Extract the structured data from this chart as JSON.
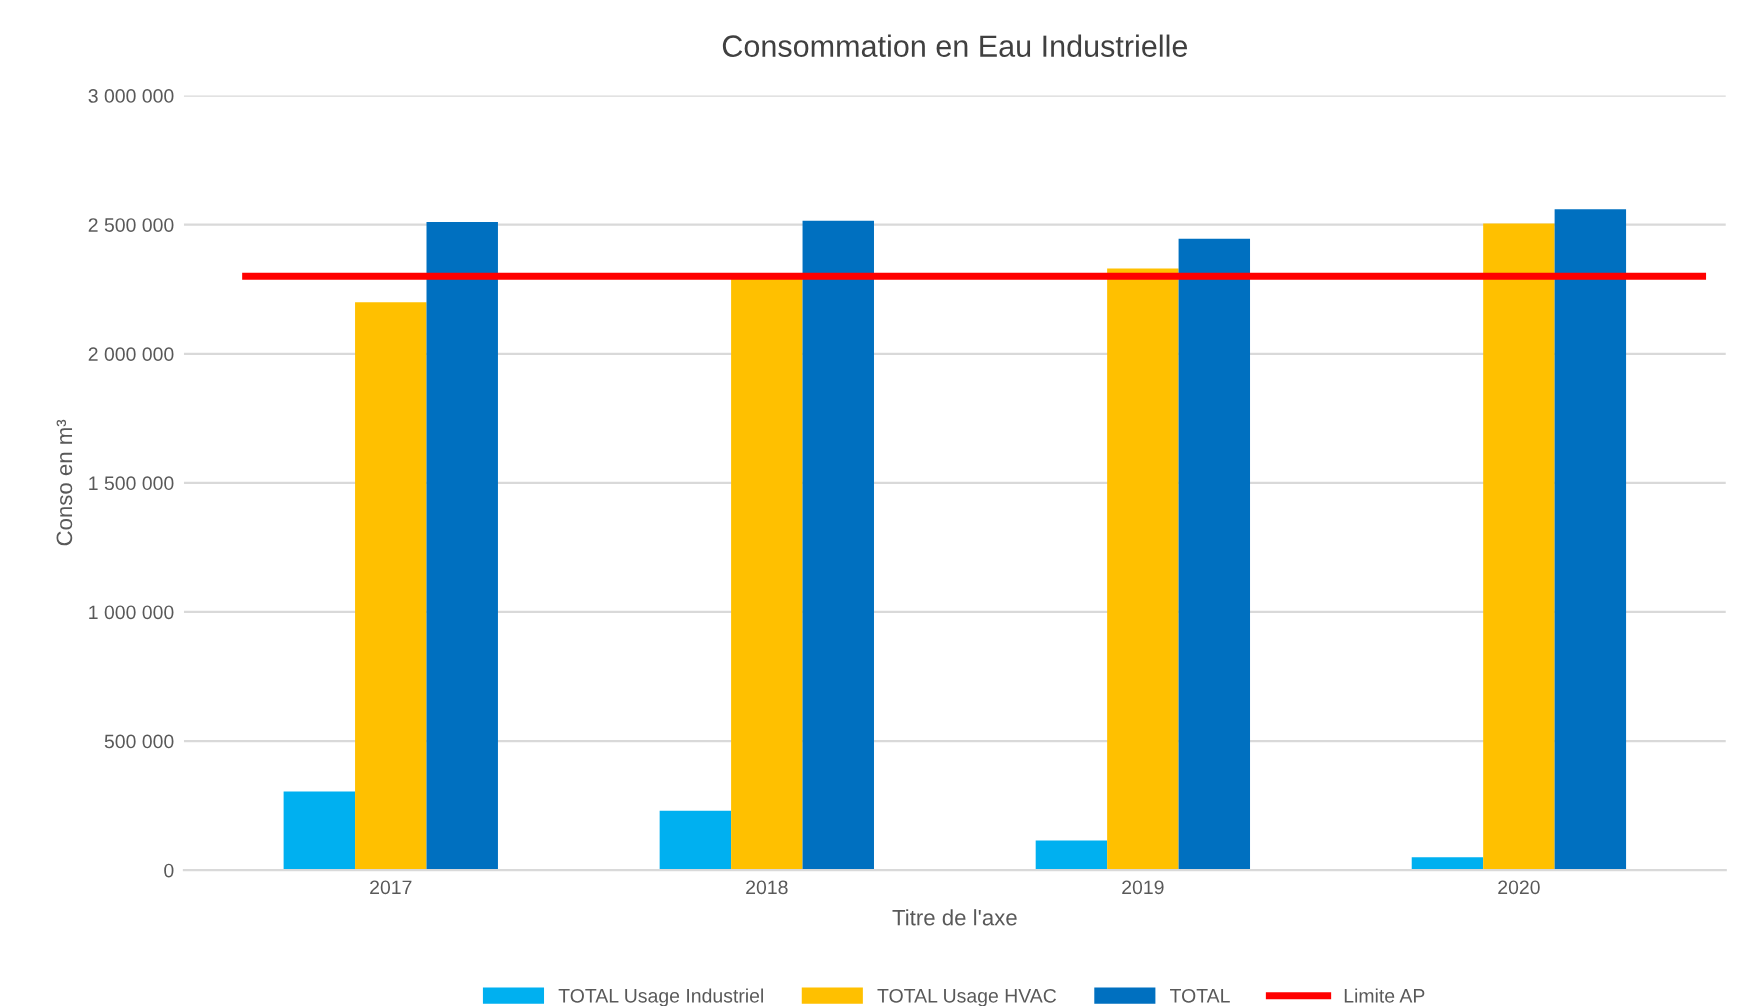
{
  "chart_data": {
    "type": "bar",
    "title": "Consommation en Eau Industrielle",
    "xlabel": "Titre de l'axe",
    "ylabel": "Conso en m³",
    "categories": [
      "2017",
      "2018",
      "2019",
      "2020"
    ],
    "series": [
      {
        "name": "TOTAL Usage Industriel",
        "color": "#00b0f0",
        "values": [
          305000,
          230000,
          115000,
          50000
        ]
      },
      {
        "name": "TOTAL Usage HVAC",
        "color": "#ffc000",
        "values": [
          2200000,
          2290000,
          2330000,
          2505000
        ]
      },
      {
        "name": "TOTAL",
        "color": "#0070c0",
        "values": [
          2510000,
          2515000,
          2445000,
          2560000
        ]
      }
    ],
    "ref_lines": [
      {
        "axis": "y",
        "value": 2300000,
        "label": "Limite AP",
        "color": "#ff0000",
        "line_style": "solid"
      }
    ],
    "ylim": [
      0,
      3000000
    ],
    "yticks": [
      {
        "value": 0,
        "label": "0"
      },
      {
        "value": 500000,
        "label": "500 000"
      },
      {
        "value": 1000000,
        "label": "1 000 000"
      },
      {
        "value": 1500000,
        "label": "1 500 000"
      },
      {
        "value": 2000000,
        "label": "2 000 000"
      },
      {
        "value": 2500000,
        "label": "2 500 000"
      },
      {
        "value": 3000000,
        "label": "3 000 000"
      }
    ],
    "grid": "y",
    "legend": "bottom"
  }
}
